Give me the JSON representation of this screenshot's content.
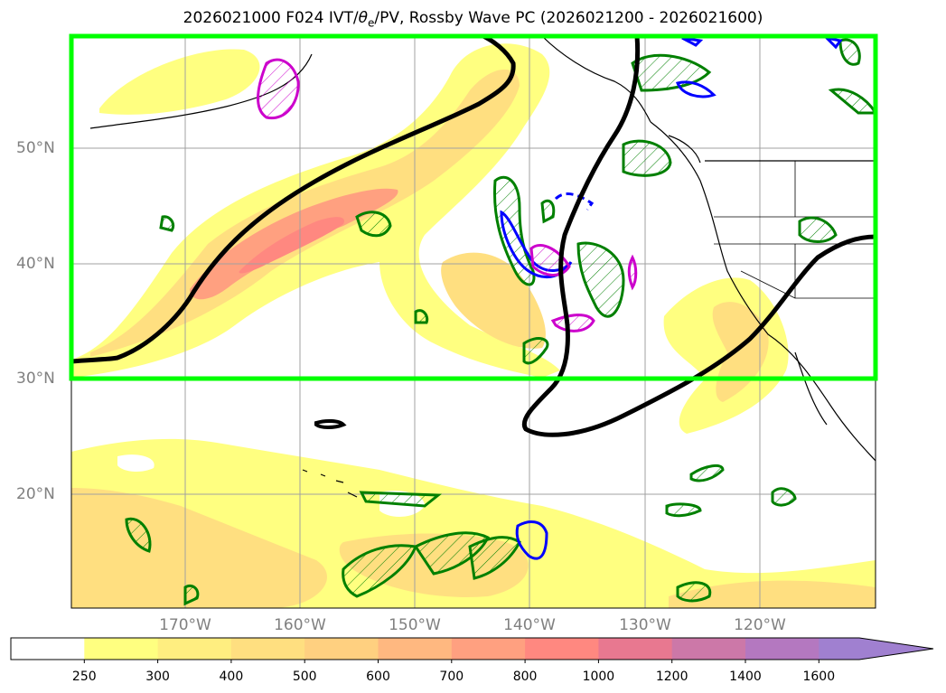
{
  "title": "2026021000 F024 IVT/θe/PV, Rossby Wave PC (2026021200 - 2026021600)",
  "title_main": "2026021000 F024 IVT/",
  "title_theta": "θ",
  "title_sub": "e",
  "title_rest": "/PV, Rossby Wave PC (2026021200 - 2026021600)",
  "latitude_labels": [
    "50°N",
    "40°N",
    "30°N",
    "20°N"
  ],
  "longitude_labels": [
    "170°W",
    "160°W",
    "150°W",
    "140°W",
    "130°W",
    "120°W"
  ],
  "colorbar": {
    "ticks": [
      "250",
      "300",
      "400",
      "500",
      "600",
      "700",
      "800",
      "1000",
      "1200",
      "1400",
      "1600"
    ],
    "colors": [
      "#ffffff",
      "#ffff80",
      "#ffee80",
      "#ffdf80",
      "#ffd080",
      "#ffb880",
      "#ffa080",
      "#ff8880",
      "#e87890",
      "#cc78a8",
      "#b478c0",
      "#a080d0"
    ]
  },
  "legend_colors": {
    "rossby_box": "#00ff00",
    "pv_contour": "#000000",
    "green_contour": "#008000",
    "blue_contour": "#0000ff",
    "magenta_contour": "#cc00cc"
  }
}
